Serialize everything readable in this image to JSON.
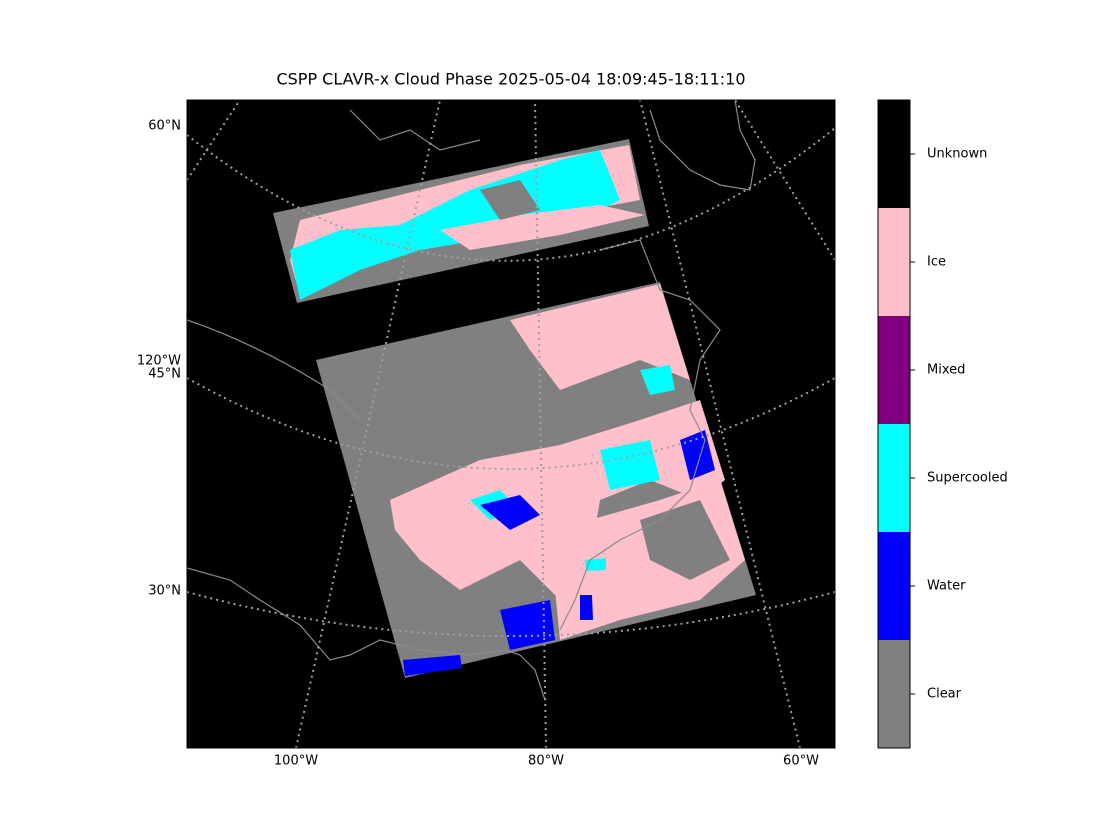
{
  "title": "CSPP CLAVR-x Cloud Phase 2025-05-04 18:09:45-18:11:10",
  "map": {
    "lat_labels": [
      "60°N",
      "45°N",
      "30°N"
    ],
    "left_lon_labels": [
      "120°W"
    ],
    "bottom_lon_labels": [
      "100°W",
      "80°W",
      "60°W"
    ]
  },
  "colorbar": {
    "categories": [
      "Clear",
      "Water",
      "Supercooled",
      "Mixed",
      "Ice",
      "Unknown"
    ],
    "colors": [
      "#808080",
      "#0000ff",
      "#00ffff",
      "#800080",
      "#ffc0cb",
      "#000000"
    ]
  }
}
